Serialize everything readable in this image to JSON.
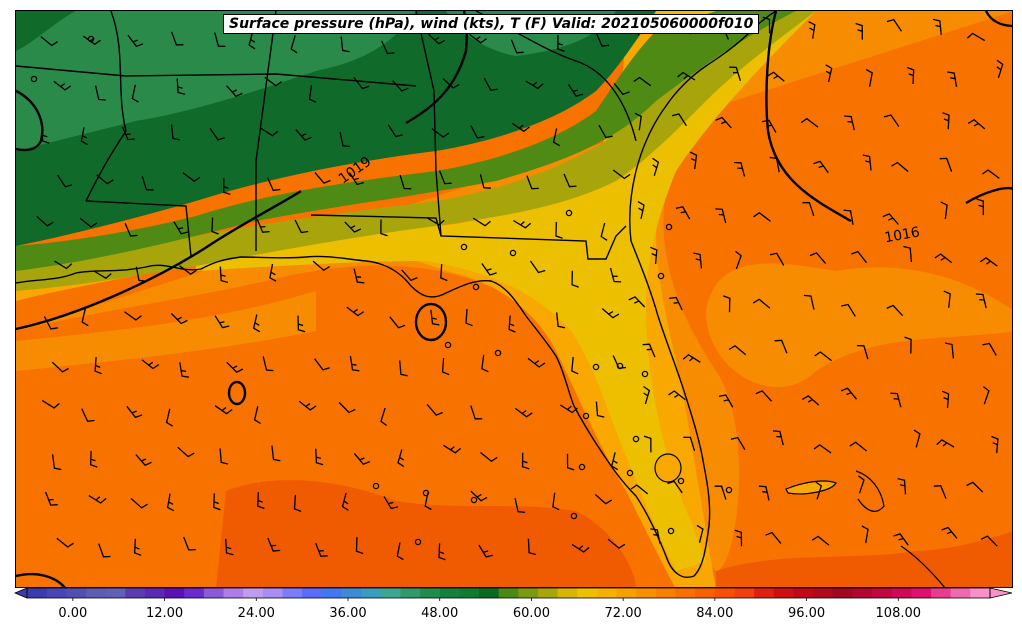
{
  "title": "Surface pressure (hPa), wind (kts), T (F) Valid: 202105060000f010",
  "isobar_labels": [
    {
      "text": "1019"
    },
    {
      "text": "1016"
    }
  ],
  "colorbar": {
    "min": -6,
    "max": 120,
    "step": 3,
    "colors": [
      "#3b3bb0",
      "#4646b8",
      "#5050b4",
      "#5c5cb0",
      "#6060b8",
      "#5a3cb0",
      "#5a28b4",
      "#5a10b4",
      "#6a2ad0",
      "#8a5ad8",
      "#b07ce8",
      "#c09cf0",
      "#a78ef5",
      "#7c7cff",
      "#5a6cff",
      "#3f78f0",
      "#3a8cd8",
      "#3a9cc0",
      "#3aa890",
      "#2e9a6a",
      "#1f8c4c",
      "#138040",
      "#0e7a32",
      "#0a6a22",
      "#4a8a14",
      "#7a9a10",
      "#a8a40c",
      "#d8b404",
      "#f0c000",
      "#f8b000",
      "#f8a000",
      "#f89000",
      "#f88000",
      "#f87000",
      "#f86000",
      "#f85000",
      "#f04010",
      "#e02010",
      "#d01010",
      "#c00818",
      "#b0081c",
      "#a00820",
      "#b00830",
      "#c00840",
      "#d00858",
      "#e01070",
      "#e83c90",
      "#f068b0",
      "#f890cc"
    ],
    "ticks": [
      "0.00",
      "12.00",
      "24.00",
      "36.00",
      "48.00",
      "60.00",
      "72.00",
      "84.00",
      "96.00",
      "108.00"
    ],
    "tick_values": [
      0,
      12,
      24,
      36,
      48,
      60,
      72,
      84,
      96,
      108
    ]
  },
  "colors": {
    "cold_green": "#106a2a",
    "green": "#2a8a4a",
    "olive": "#4e8a14",
    "olive_yellow": "#a8a40c",
    "yellow": "#ecc000",
    "amber": "#f8a800",
    "orange_light": "#f88c00",
    "orange": "#f87200",
    "orange_dark": "#f05a00"
  }
}
